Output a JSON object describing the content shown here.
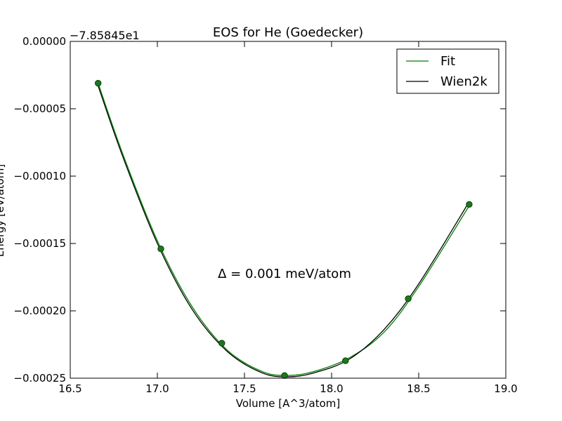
{
  "chart_data": {
    "type": "line",
    "title": "EOS for He (Goedecker)",
    "xlabel": "Volume [A^3/atom]",
    "ylabel": "Energy [eV/atom]",
    "y_offset_label": "−7.85845e1",
    "xlim": [
      16.5,
      19.0
    ],
    "ylim": [
      -0.00025,
      0.0
    ],
    "xticks": [
      16.5,
      17.0,
      17.5,
      18.0,
      18.5,
      19.0
    ],
    "xtick_labels": [
      "16.5",
      "17.0",
      "17.5",
      "18.0",
      "18.5",
      "19.0"
    ],
    "yticks": [
      0.0,
      -5e-05,
      -0.0001,
      -0.00015,
      -0.0002,
      -0.00025
    ],
    "ytick_labels": [
      "0.00000",
      "−0.00005",
      "−0.00010",
      "−0.00015",
      "−0.00020",
      "−0.00025"
    ],
    "grid": false,
    "legend_position": "top-right",
    "annotation": "Δ = 0.001 meV/atom",
    "points": {
      "x": [
        16.66,
        17.02,
        17.37,
        17.73,
        18.08,
        18.44,
        18.79
      ],
      "y": [
        -3.1e-05,
        -0.000154,
        -0.000224,
        -0.000248,
        -0.000237,
        -0.000191,
        -0.000121
      ],
      "color": "#1a7a1a",
      "edge_color": "#0b3d0b"
    },
    "series": [
      {
        "name": "Fit",
        "color": "#008000",
        "x": [
          16.66,
          16.8,
          17.0,
          17.2,
          17.4,
          17.6,
          17.75,
          17.9,
          18.1,
          18.3,
          18.5,
          18.79
        ],
        "y": [
          -3.1e-05,
          -8.3e-05,
          -0.000148,
          -0.000197,
          -0.000229,
          -0.000245,
          -0.000248,
          -0.000245,
          -0.000235,
          -0.000216,
          -0.000182,
          -0.000122
        ]
      },
      {
        "name": "Wien2k",
        "color": "#000000",
        "x": [
          16.66,
          16.8,
          17.0,
          17.2,
          17.4,
          17.6,
          17.75,
          17.9,
          18.1,
          18.3,
          18.5,
          18.79
        ],
        "y": [
          -3.3e-05,
          -8.5e-05,
          -0.00015,
          -0.000199,
          -0.00023,
          -0.000246,
          -0.000249,
          -0.000246,
          -0.000236,
          -0.000214,
          -0.00018,
          -0.000119
        ]
      }
    ]
  }
}
